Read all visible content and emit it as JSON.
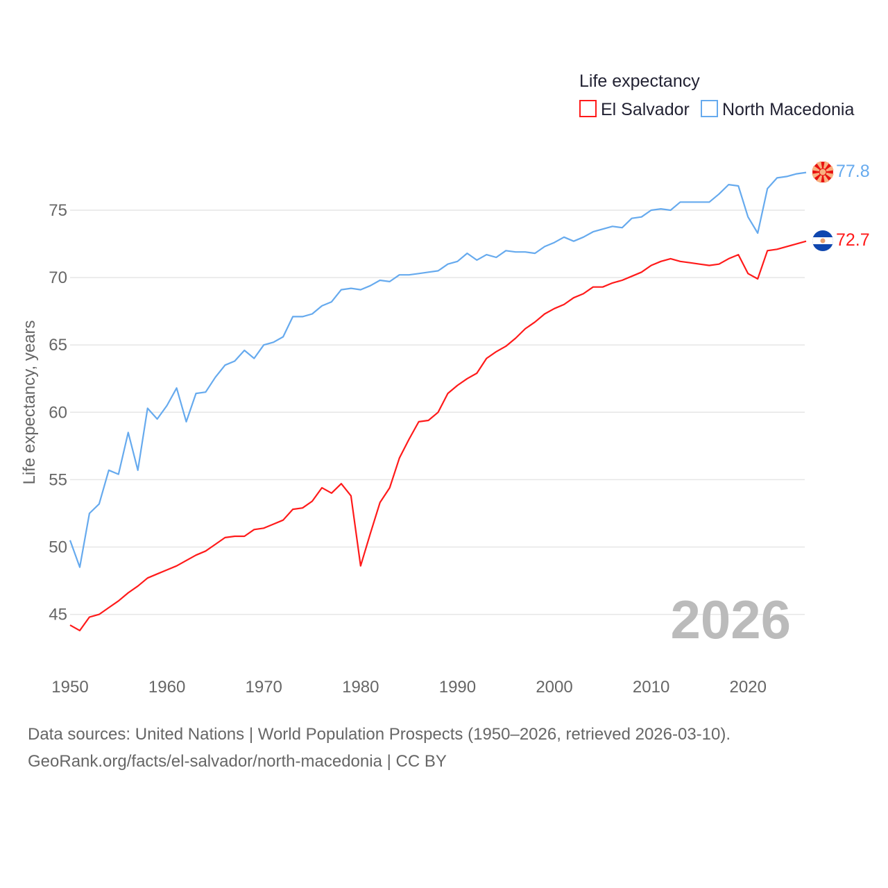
{
  "chart_data": {
    "type": "line",
    "title": "Life expectancy",
    "ylabel": "Life expectancy, years",
    "xlabel": "",
    "xlim": [
      1950,
      2026
    ],
    "ylim": [
      42,
      79
    ],
    "grid": true,
    "legend_position": "top-right",
    "x_ticks": [
      1950,
      1960,
      1970,
      1980,
      1990,
      2000,
      2010,
      2020
    ],
    "y_ticks": [
      45,
      50,
      55,
      60,
      65,
      70,
      75
    ],
    "annotation_year": "2026",
    "x": [
      1950,
      1951,
      1952,
      1953,
      1954,
      1955,
      1956,
      1957,
      1958,
      1959,
      1960,
      1961,
      1962,
      1963,
      1964,
      1965,
      1966,
      1967,
      1968,
      1969,
      1970,
      1971,
      1972,
      1973,
      1974,
      1975,
      1976,
      1977,
      1978,
      1979,
      1980,
      1981,
      1982,
      1983,
      1984,
      1985,
      1986,
      1987,
      1988,
      1989,
      1990,
      1991,
      1992,
      1993,
      1994,
      1995,
      1996,
      1997,
      1998,
      1999,
      2000,
      2001,
      2002,
      2003,
      2004,
      2005,
      2006,
      2007,
      2008,
      2009,
      2010,
      2011,
      2012,
      2013,
      2014,
      2015,
      2016,
      2017,
      2018,
      2019,
      2020,
      2021,
      2022,
      2023,
      2024,
      2025,
      2026
    ],
    "series": [
      {
        "name": "El Salvador",
        "color": "#ff1a1a",
        "end_label": "72.7",
        "values": [
          44.2,
          43.8,
          44.8,
          45.0,
          45.5,
          46.0,
          46.6,
          47.1,
          47.7,
          48.0,
          48.3,
          48.6,
          49.0,
          49.4,
          49.7,
          50.2,
          50.7,
          50.8,
          50.8,
          51.3,
          51.4,
          51.7,
          52.0,
          52.8,
          52.9,
          53.4,
          54.4,
          54.0,
          54.7,
          53.8,
          48.6,
          51.0,
          53.3,
          54.4,
          56.6,
          58.0,
          59.3,
          59.4,
          60.0,
          61.4,
          62.0,
          62.5,
          62.9,
          64.0,
          64.5,
          64.9,
          65.5,
          66.2,
          66.7,
          67.3,
          67.7,
          68.0,
          68.5,
          68.8,
          69.3,
          69.3,
          69.6,
          69.8,
          70.1,
          70.4,
          70.9,
          71.2,
          71.4,
          71.2,
          71.1,
          71.0,
          70.9,
          71.0,
          71.4,
          71.7,
          70.3,
          69.9,
          72.0,
          72.1,
          72.3,
          72.5,
          72.7
        ]
      },
      {
        "name": "North Macedonia",
        "color": "#66aaee",
        "end_label": "77.8",
        "values": [
          50.5,
          48.5,
          52.5,
          53.2,
          55.7,
          55.4,
          58.5,
          55.7,
          60.3,
          59.5,
          60.5,
          61.8,
          59.3,
          61.4,
          61.5,
          62.6,
          63.5,
          63.8,
          64.6,
          64.0,
          65.0,
          65.2,
          65.6,
          67.1,
          67.1,
          67.3,
          67.9,
          68.2,
          69.1,
          69.2,
          69.1,
          69.4,
          69.8,
          69.7,
          70.2,
          70.2,
          70.3,
          70.4,
          70.5,
          71.0,
          71.2,
          71.8,
          71.3,
          71.7,
          71.5,
          72.0,
          71.9,
          71.9,
          71.8,
          72.3,
          72.6,
          73.0,
          72.7,
          73.0,
          73.4,
          73.6,
          73.8,
          73.7,
          74.4,
          74.5,
          75.0,
          75.1,
          75.0,
          75.6,
          75.6,
          75.6,
          75.6,
          76.2,
          76.9,
          76.8,
          74.5,
          73.3,
          76.6,
          77.4,
          77.5,
          77.7,
          77.8
        ]
      }
    ]
  },
  "source": {
    "line1": "Data sources: United Nations | World Population Prospects (1950–2026, retrieved 2026-03-10).",
    "line2": "GeoRank.org/facts/el-salvador/north-macedonia | CC BY"
  }
}
